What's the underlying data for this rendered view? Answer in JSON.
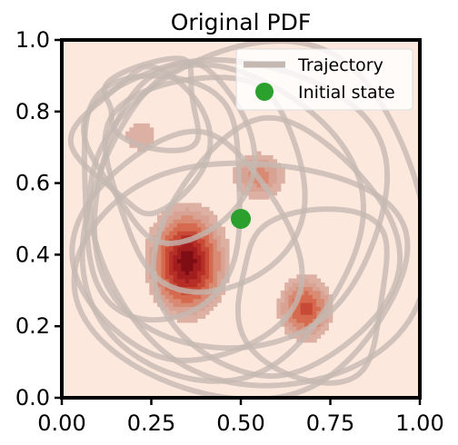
{
  "chart_data": {
    "type": "heatmap",
    "title": "Original PDF",
    "xlabel": "",
    "ylabel": "",
    "xlim": [
      0,
      1
    ],
    "ylim": [
      0,
      1
    ],
    "x_ticks": [
      "0.00",
      "0.25",
      "0.50",
      "0.75",
      "1.00"
    ],
    "y_ticks": [
      "0.0",
      "0.2",
      "0.4",
      "0.6",
      "0.8",
      "1.0"
    ],
    "grid": false,
    "legend": {
      "placement": "top-right",
      "entries": [
        {
          "label": "Trajectory",
          "marker": "line",
          "color": "#c4b8b2"
        },
        {
          "label": "Initial state",
          "marker": "circle",
          "color": "#2ca02c"
        }
      ]
    },
    "colormap": "Reds",
    "background_color": "#fde8de",
    "density_modes": [
      {
        "center": [
          0.35,
          0.38
        ],
        "sigma": [
          0.06,
          0.085
        ],
        "weight": 1.0
      },
      {
        "center": [
          0.68,
          0.25
        ],
        "sigma": [
          0.045,
          0.055
        ],
        "weight": 0.62
      },
      {
        "center": [
          0.55,
          0.62
        ],
        "sigma": [
          0.05,
          0.045
        ],
        "weight": 0.38
      },
      {
        "center": [
          0.22,
          0.73
        ],
        "sigma": [
          0.04,
          0.04
        ],
        "weight": 0.22
      }
    ],
    "initial_state": {
      "x": 0.5,
      "y": 0.5,
      "color": "#2ca02c"
    }
  }
}
